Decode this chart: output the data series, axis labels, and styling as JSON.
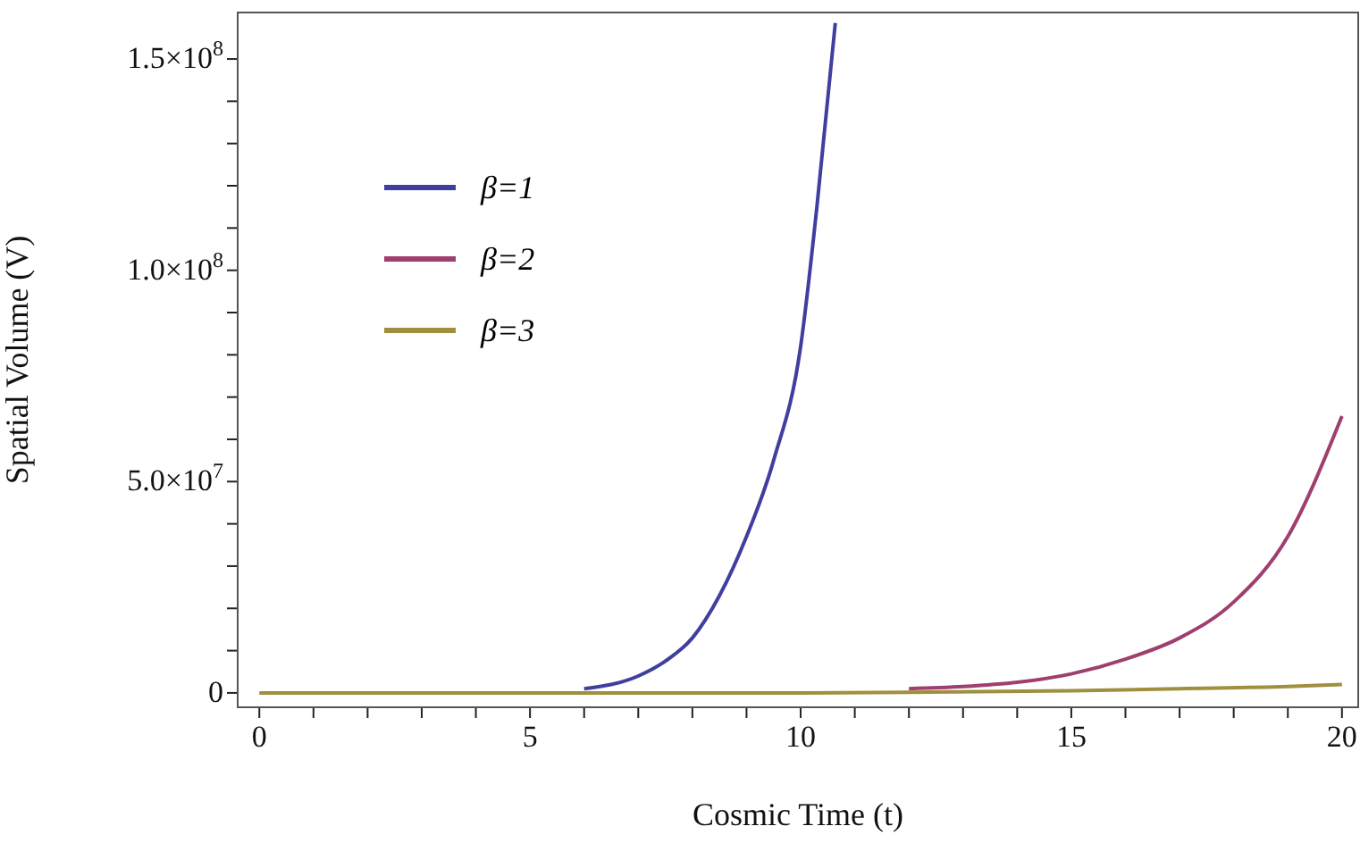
{
  "chart_data": {
    "type": "line",
    "xlabel": "Cosmic Time (t)",
    "ylabel": "Spatial Volume (V)",
    "xlim": [
      -0.4,
      20.3
    ],
    "ylim": [
      -3400000,
      161000000
    ],
    "xticks": [
      0,
      {
        "value": 1,
        "label": null
      },
      {
        "value": 2,
        "label": null
      },
      {
        "value": 3,
        "label": null
      },
      {
        "value": 4,
        "label": null
      },
      5,
      {
        "value": 6,
        "label": null
      },
      {
        "value": 7,
        "label": null
      },
      {
        "value": 8,
        "label": null
      },
      {
        "value": 9,
        "label": null
      },
      10,
      {
        "value": 11,
        "label": null
      },
      {
        "value": 12,
        "label": null
      },
      {
        "value": 13,
        "label": null
      },
      {
        "value": 14,
        "label": null
      },
      15,
      {
        "value": 16,
        "label": null
      },
      {
        "value": 17,
        "label": null
      },
      {
        "value": 18,
        "label": null
      },
      {
        "value": 19,
        "label": null
      },
      20
    ],
    "yticks": [
      0,
      {
        "value": 10000000,
        "label": null
      },
      {
        "value": 20000000,
        "label": null
      },
      {
        "value": 30000000,
        "label": null
      },
      {
        "value": 40000000,
        "label": null
      },
      {
        "value": 50000000,
        "label": "5.0×10$^{7}$"
      },
      {
        "value": 60000000,
        "label": null
      },
      {
        "value": 70000000,
        "label": null
      },
      {
        "value": 80000000,
        "label": null
      },
      {
        "value": 90000000,
        "label": null
      },
      {
        "value": 100000000,
        "label": "1.0×10$^{8}$"
      },
      {
        "value": 110000000,
        "label": null
      },
      {
        "value": 120000000,
        "label": null
      },
      {
        "value": 130000000,
        "label": null
      },
      {
        "value": 140000000,
        "label": null
      },
      {
        "value": 150000000,
        "label": "1.5×10$^{8}$"
      }
    ],
    "grid": false,
    "legend": "top left",
    "marker": "none",
    "line_style": "solid",
    "series": [
      {
        "name": "β=1",
        "color": "#3f3f9f",
        "x": [
          6,
          7,
          7.5,
          8,
          8.5,
          9,
          9.5,
          10,
          10.3,
          10.64
        ],
        "values": [
          1000000,
          4000000,
          7500000,
          13000000,
          23000000,
          37000000,
          55000000,
          82000000,
          115000000,
          158500000
        ]
      },
      {
        "name": "β=2",
        "color": "#9f3f6f",
        "x": [
          12,
          13,
          14,
          15,
          16,
          17,
          18,
          19,
          20
        ],
        "values": [
          1000000,
          1500000,
          2500000,
          4500000,
          8000000,
          13000000,
          21500000,
          37000000,
          65500000
        ]
      },
      {
        "name": "β=3",
        "color": "#9f8f3f",
        "x": [
          0,
          10,
          15,
          17,
          19,
          20
        ],
        "values": [
          0,
          0,
          500000,
          1000000,
          1500000,
          2000000
        ]
      }
    ]
  }
}
